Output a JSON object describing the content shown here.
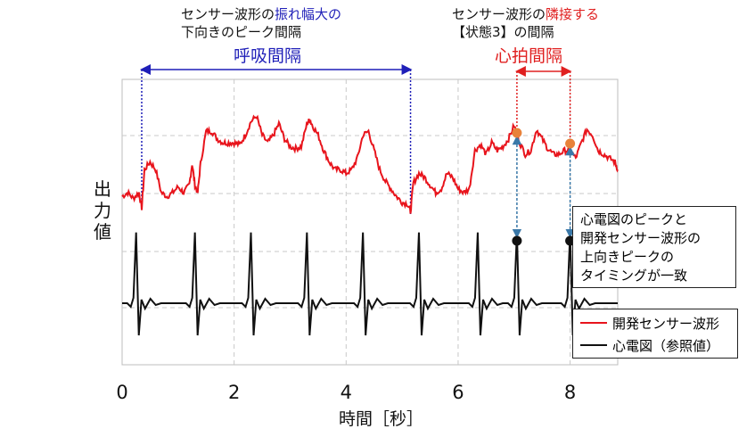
{
  "annotations": {
    "top_left": {
      "line1_prefix": "センサー波形の",
      "line1_highlight": "振れ幅大の",
      "line2": "下向きのピーク間隔",
      "label": "呼吸間隔"
    },
    "top_right": {
      "line1_prefix": "センサー波形の",
      "line1_highlight": "隣接する",
      "line2": "【状態3】の間隔",
      "label": "心拍間隔"
    },
    "callout": {
      "line1": "心電図のピークと",
      "line2": "開発センサー波形の",
      "line3": "上向きピークの",
      "line4": "タイミングが一致"
    }
  },
  "colors": {
    "sensor": "#e8141c",
    "ecg": "#111111",
    "respiration": "#1f1fb8",
    "heart": "#e02020",
    "marker_orange": "#e8823a",
    "guide": "#3a78a8"
  },
  "chart_data": {
    "type": "line",
    "title": "",
    "xlabel": "時間［秒］",
    "ylabel": "出力値",
    "x_ticks": [
      0,
      2,
      4,
      6,
      8
    ],
    "xlim": [
      0,
      8.85
    ],
    "grid": true,
    "legend_position": "bottom-right",
    "series": [
      {
        "name": "開発センサー波形",
        "color": "#e8141c",
        "x": [
          0.0,
          0.1,
          0.2,
          0.3,
          0.35,
          0.4,
          0.5,
          0.6,
          0.7,
          0.8,
          0.9,
          1.0,
          1.1,
          1.2,
          1.25,
          1.3,
          1.35,
          1.4,
          1.5,
          1.6,
          1.7,
          1.8,
          1.9,
          2.0,
          2.1,
          2.2,
          2.3,
          2.4,
          2.5,
          2.6,
          2.7,
          2.8,
          2.9,
          3.0,
          3.1,
          3.2,
          3.3,
          3.35,
          3.4,
          3.5,
          3.6,
          3.7,
          3.8,
          3.9,
          4.0,
          4.1,
          4.2,
          4.3,
          4.4,
          4.5,
          4.6,
          4.7,
          4.8,
          4.9,
          5.0,
          5.1,
          5.15,
          5.2,
          5.3,
          5.4,
          5.5,
          5.6,
          5.7,
          5.8,
          5.9,
          6.0,
          6.1,
          6.2,
          6.3,
          6.4,
          6.5,
          6.6,
          6.7,
          6.8,
          6.9,
          7.0,
          7.1,
          7.2,
          7.3,
          7.4,
          7.5,
          7.6,
          7.7,
          7.8,
          7.9,
          8.0,
          8.1,
          8.2,
          8.3,
          8.4,
          8.5,
          8.6,
          8.7,
          8.8,
          8.85
        ],
        "y": [
          0.58,
          0.6,
          0.57,
          0.6,
          0.52,
          0.72,
          0.76,
          0.72,
          0.6,
          0.58,
          0.6,
          0.63,
          0.6,
          0.64,
          0.75,
          0.64,
          0.6,
          0.75,
          0.92,
          0.92,
          0.88,
          0.86,
          0.86,
          0.86,
          0.85,
          0.9,
          0.97,
          1.0,
          0.9,
          0.86,
          0.9,
          0.96,
          0.88,
          0.84,
          0.83,
          0.84,
          0.96,
          0.98,
          0.95,
          0.9,
          0.82,
          0.76,
          0.72,
          0.72,
          0.7,
          0.72,
          0.78,
          0.9,
          0.92,
          0.82,
          0.72,
          0.66,
          0.62,
          0.58,
          0.55,
          0.54,
          0.5,
          0.65,
          0.7,
          0.68,
          0.64,
          0.6,
          0.62,
          0.7,
          0.68,
          0.62,
          0.6,
          0.62,
          0.82,
          0.85,
          0.8,
          0.86,
          0.82,
          0.84,
          0.88,
          0.95,
          0.86,
          0.8,
          0.82,
          0.93,
          0.88,
          0.83,
          0.8,
          0.8,
          0.82,
          0.82,
          0.78,
          0.86,
          0.93,
          0.9,
          0.82,
          0.8,
          0.78,
          0.76,
          0.72
        ]
      },
      {
        "name": "心電図（参照値）",
        "color": "#111111",
        "peaks_x": [
          0.25,
          1.3,
          2.3,
          3.3,
          4.3,
          5.3,
          6.35,
          7.05,
          8.0
        ],
        "baseline": 0.0,
        "peak_height": 0.63,
        "marker_peaks_x": [
          7.05,
          8.0
        ]
      }
    ],
    "respiration_interval_x": [
      0.35,
      5.15
    ],
    "heartbeat_interval_x": [
      7.05,
      8.0
    ]
  }
}
